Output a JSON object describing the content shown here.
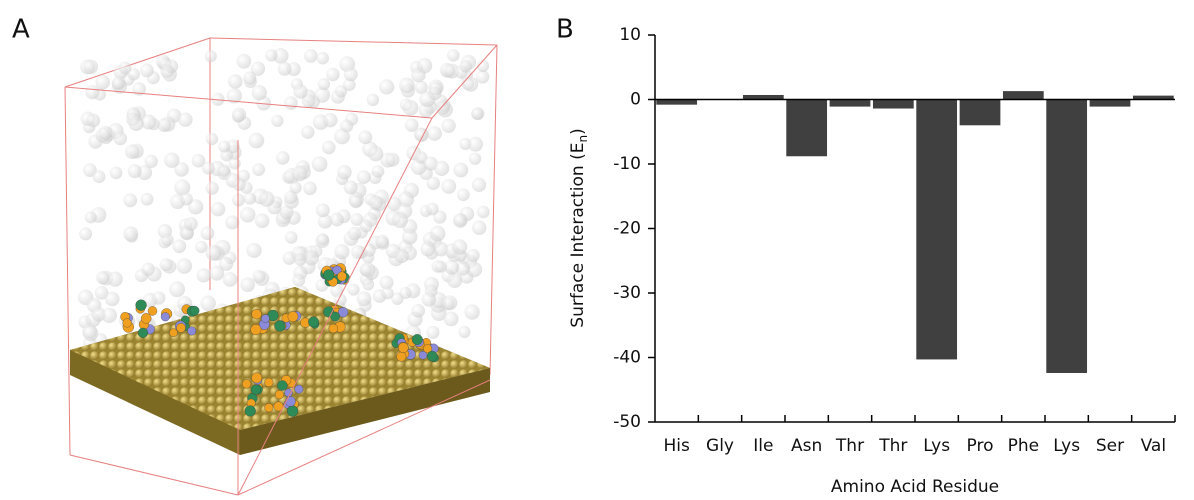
{
  "panel_labels": [
    "A",
    "B"
  ],
  "chart_data": {
    "type": "bar",
    "ylabel": {
      "text": "Surface Interaction (E",
      "subscript": "n",
      "suffix": ")"
    },
    "xlabel": "Amino Acid Residue",
    "categories": [
      "His",
      "Gly",
      "Ile",
      "Asn",
      "Thr",
      "Thr",
      "Lys",
      "Pro",
      "Phe",
      "Lys",
      "Ser",
      "Val"
    ],
    "values": [
      -0.8,
      0,
      0.7,
      -8.8,
      -1.1,
      -1.4,
      -40.3,
      -4.0,
      1.3,
      -42.4,
      -1.1,
      0.6
    ],
    "color": "#404040",
    "ylim": [
      -50,
      10
    ],
    "yticks": [
      10,
      0,
      -10,
      -20,
      -30,
      -40,
      -50
    ]
  }
}
